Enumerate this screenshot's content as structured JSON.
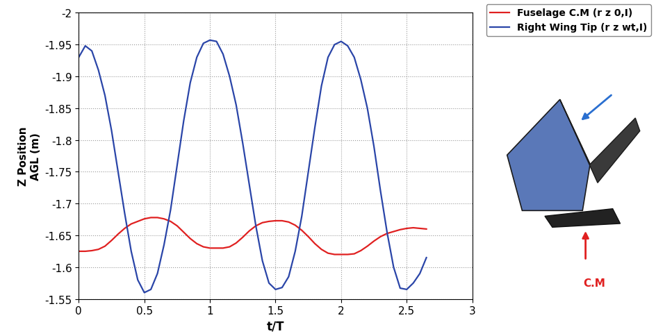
{
  "chart_data": {
    "type": "line",
    "x_label": "t/T",
    "y_label": "Z Position\nAGL (m)",
    "x": [
      0,
      0.05,
      0.1,
      0.15,
      0.2,
      0.25,
      0.3,
      0.35,
      0.4,
      0.45,
      0.5,
      0.55,
      0.6,
      0.65,
      0.7,
      0.75,
      0.8,
      0.85,
      0.9,
      0.95,
      1.0,
      1.05,
      1.1,
      1.15,
      1.2,
      1.25,
      1.3,
      1.35,
      1.4,
      1.45,
      1.5,
      1.55,
      1.6,
      1.65,
      1.7,
      1.75,
      1.8,
      1.85,
      1.9,
      1.95,
      2.0,
      2.05,
      2.1,
      2.15,
      2.2,
      2.25,
      2.3,
      2.35,
      2.4,
      2.45,
      2.5,
      2.55,
      2.6,
      2.65
    ],
    "series": [
      {
        "name": "Fuselage C.M (r z 0,I)",
        "color": "#e02020",
        "line_style": "solid",
        "values": [
          -1.625,
          -1.625,
          -1.626,
          -1.628,
          -1.633,
          -1.642,
          -1.652,
          -1.661,
          -1.668,
          -1.672,
          -1.676,
          -1.678,
          -1.678,
          -1.676,
          -1.672,
          -1.665,
          -1.655,
          -1.645,
          -1.637,
          -1.632,
          -1.63,
          -1.63,
          -1.63,
          -1.632,
          -1.638,
          -1.647,
          -1.657,
          -1.665,
          -1.67,
          -1.672,
          -1.673,
          -1.673,
          -1.671,
          -1.666,
          -1.658,
          -1.648,
          -1.637,
          -1.628,
          -1.622,
          -1.62,
          -1.62,
          -1.62,
          -1.621,
          -1.626,
          -1.633,
          -1.641,
          -1.648,
          -1.653,
          -1.656,
          -1.659,
          -1.661,
          -1.662,
          -1.661,
          -1.66
        ]
      },
      {
        "name": "Right Wing Tip (r z wt,I)",
        "color": "#2a45a8",
        "line_style": "solid",
        "values": [
          -1.93,
          -1.948,
          -1.94,
          -1.91,
          -1.87,
          -1.815,
          -1.75,
          -1.685,
          -1.625,
          -1.58,
          -1.56,
          -1.565,
          -1.59,
          -1.635,
          -1.69,
          -1.76,
          -1.83,
          -1.89,
          -1.93,
          -1.952,
          -1.957,
          -1.955,
          -1.935,
          -1.9,
          -1.855,
          -1.795,
          -1.73,
          -1.665,
          -1.61,
          -1.575,
          -1.565,
          -1.568,
          -1.585,
          -1.625,
          -1.68,
          -1.75,
          -1.82,
          -1.885,
          -1.93,
          -1.95,
          -1.955,
          -1.948,
          -1.93,
          -1.895,
          -1.85,
          -1.79,
          -1.72,
          -1.655,
          -1.6,
          -1.567,
          -1.565,
          -1.575,
          -1.59,
          -1.615
        ]
      }
    ],
    "xlim": [
      0,
      3
    ],
    "xticks": [
      0,
      0.5,
      1,
      1.5,
      2,
      2.5,
      3
    ],
    "ylim": [
      -1.55,
      -2
    ],
    "yticks": [
      -2,
      -1.95,
      -1.9,
      -1.85,
      -1.8,
      -1.75,
      -1.7,
      -1.65,
      -1.6,
      -1.55
    ],
    "grid": true,
    "legend": "upper right",
    "annotations": [
      "C.M"
    ]
  }
}
